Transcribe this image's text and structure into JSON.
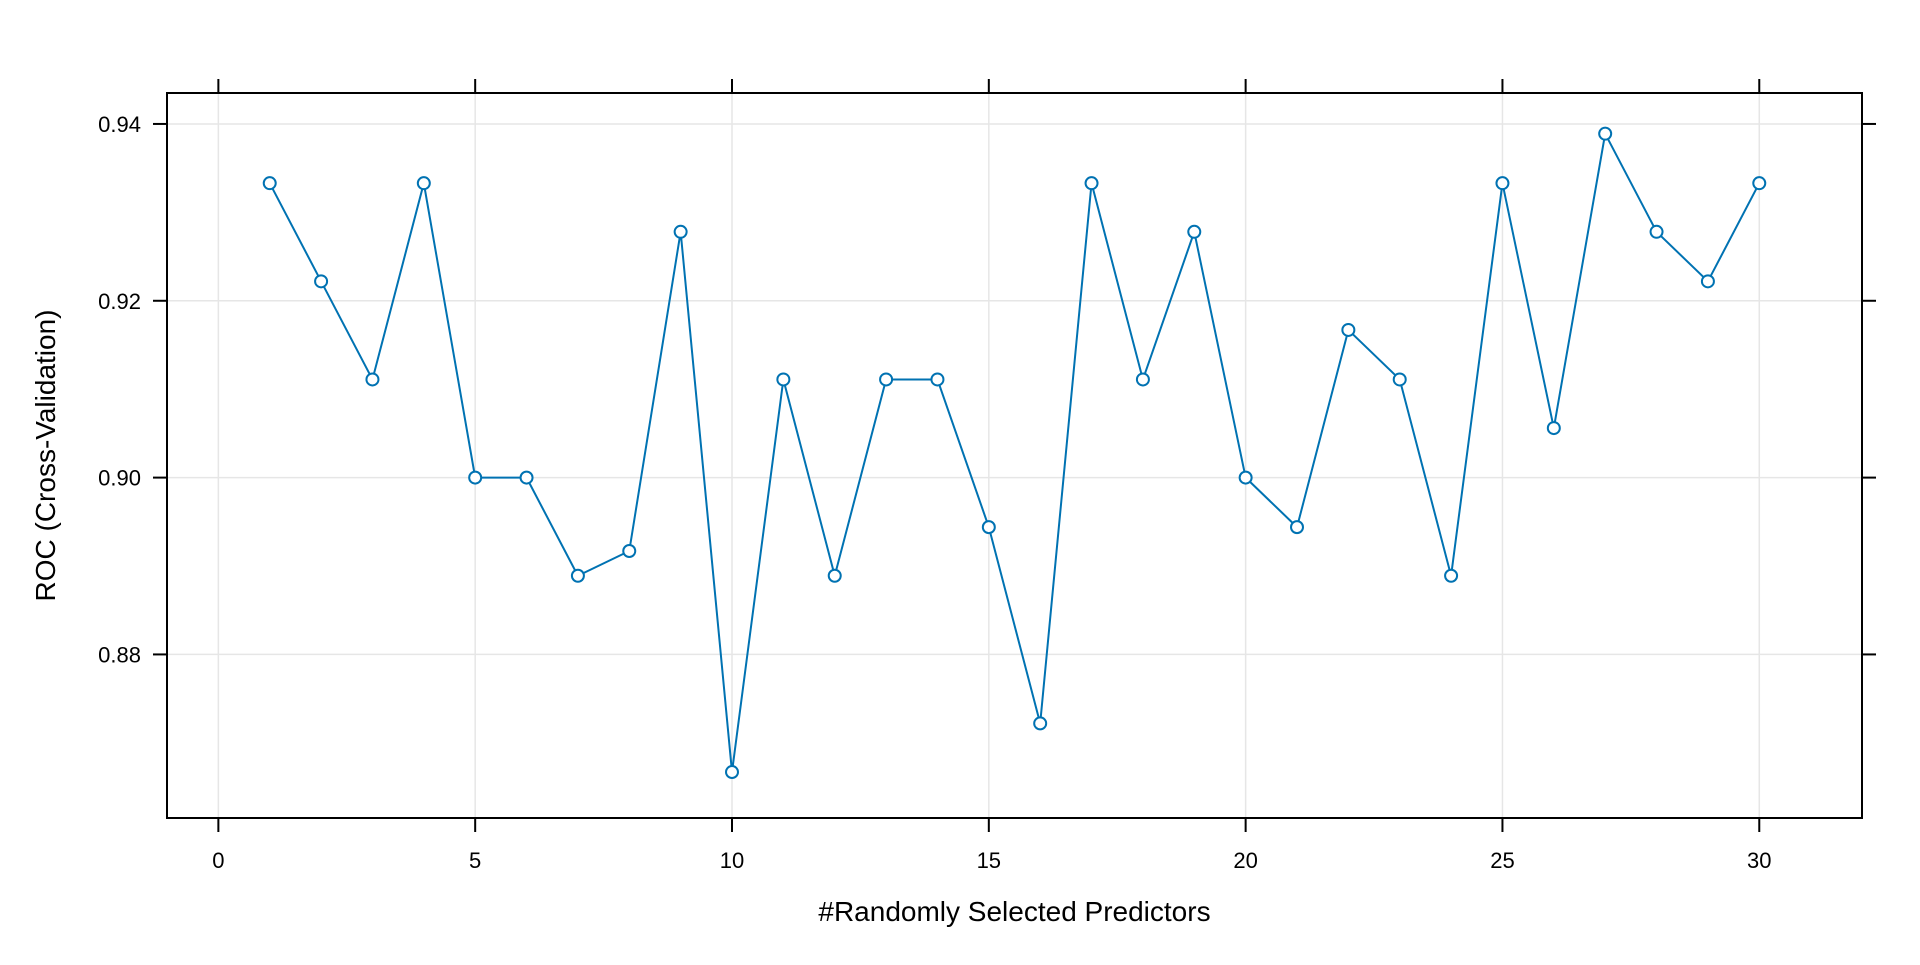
{
  "chart_data": {
    "type": "line",
    "title": "",
    "xlabel": "#Randomly Selected Predictors",
    "ylabel": "ROC (Cross-Validation)",
    "xlim": [
      -1,
      32
    ],
    "ylim": [
      0.8615,
      0.9435
    ],
    "x_ticks": [
      0,
      5,
      10,
      15,
      20,
      25,
      30
    ],
    "y_ticks": [
      0.88,
      0.9,
      0.92,
      0.94
    ],
    "x_tick_labels": [
      "0",
      "5",
      "10",
      "15",
      "20",
      "25",
      "30"
    ],
    "y_tick_labels": [
      "0.88",
      "0.90",
      "0.92",
      "0.94"
    ],
    "grid": true,
    "series": [
      {
        "color": "#0072B2",
        "marker": "open-circle",
        "x": [
          1,
          2,
          3,
          4,
          5,
          6,
          7,
          8,
          9,
          10,
          11,
          12,
          13,
          14,
          15,
          16,
          17,
          18,
          19,
          20,
          21,
          22,
          23,
          24,
          25,
          26,
          27,
          28,
          29,
          30
        ],
        "values": [
          0.9333,
          0.9222,
          0.9111,
          0.9333,
          0.9,
          0.9,
          0.8889,
          0.8917,
          0.9278,
          0.8667,
          0.9111,
          0.8889,
          0.9111,
          0.9111,
          0.8944,
          0.8722,
          0.9333,
          0.9111,
          0.9278,
          0.9,
          0.8944,
          0.9167,
          0.9111,
          0.8889,
          0.9333,
          0.9056,
          0.9389,
          0.9278,
          0.9222,
          0.9333
        ]
      }
    ],
    "colors": {
      "grid": "#e6e6e6",
      "frame": "#000000"
    }
  }
}
